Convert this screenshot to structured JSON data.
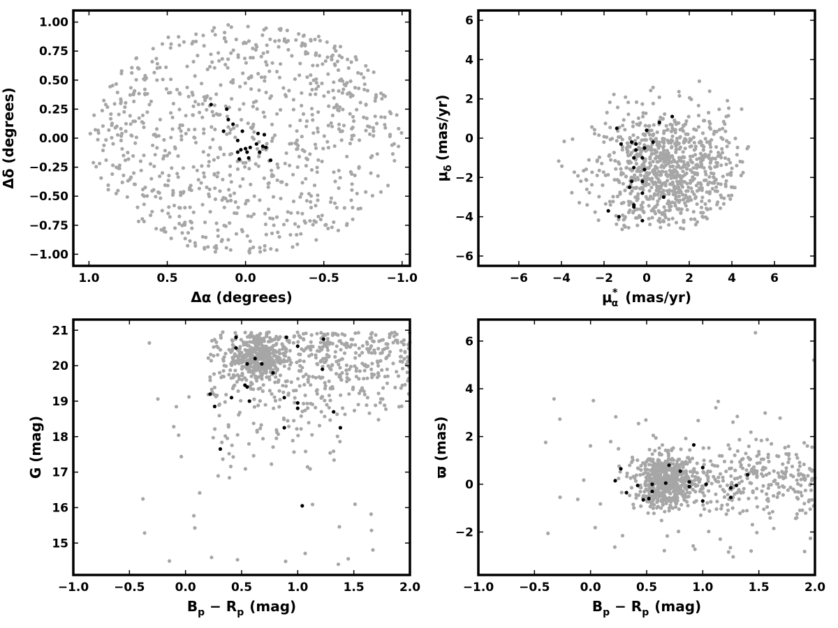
{
  "colors": {
    "field_stars": "#a6a6a6",
    "members": "#000000",
    "frame": "#000000"
  },
  "chart_data": [
    {
      "id": "sky",
      "type": "scatter",
      "xlabel": "Δα (degrees)",
      "ylabel": "Δδ (degrees)",
      "xlim": [
        1.1,
        -1.05
      ],
      "ylim": [
        -1.1,
        1.1
      ],
      "x_inverted": true,
      "xticks": [
        1.0,
        0.5,
        0.0,
        -0.5,
        -1.0
      ],
      "xtick_labels": [
        "1.0",
        "0.5",
        "0.0",
        "−0.5",
        "−1.0"
      ],
      "yticks": [
        -1.0,
        -0.75,
        -0.5,
        -0.25,
        0.0,
        0.25,
        0.5,
        0.75,
        1.0
      ],
      "ytick_labels": [
        "−1.00",
        "−0.75",
        "−0.50",
        "−0.25",
        "0.00",
        "0.25",
        "0.50",
        "0.75",
        "1.00"
      ],
      "grid": false,
      "series": [
        {
          "role": "field",
          "distribution": "uniform disk",
          "center": [
            0,
            0
          ],
          "radius": 1.0,
          "count": 850
        },
        {
          "role": "members",
          "points": [
            [
              0.22,
              0.29
            ],
            [
              0.14,
              0.06
            ],
            [
              0.12,
              0.25
            ],
            [
              0.11,
              0.16
            ],
            [
              0.08,
              0.12
            ],
            [
              0.05,
              -0.02
            ],
            [
              0.05,
              -0.12
            ],
            [
              0.04,
              -0.18
            ],
            [
              0.03,
              -0.1
            ],
            [
              0.02,
              0.06
            ],
            [
              0.0,
              -0.09
            ],
            [
              -0.01,
              -0.12
            ],
            [
              -0.02,
              -0.17
            ],
            [
              -0.03,
              -0.08
            ],
            [
              -0.07,
              -0.05
            ],
            [
              -0.08,
              0.04
            ],
            [
              -0.09,
              -0.12
            ],
            [
              -0.11,
              -0.07
            ],
            [
              -0.12,
              0.03
            ],
            [
              -0.13,
              -0.08
            ],
            [
              -0.16,
              -0.19
            ]
          ]
        }
      ]
    },
    {
      "id": "proper-motion",
      "type": "scatter",
      "xlabel_main": "μ",
      "xlabel_sub": "α",
      "xlabel_sup": "*",
      "xlabel_units": "(mas/yr)",
      "ylabel_main": "μ",
      "ylabel_sub": "δ",
      "ylabel_units": "(mas/yr)",
      "xlim": [
        -7.9,
        7.9
      ],
      "ylim": [
        -6.5,
        6.5
      ],
      "xticks": [
        -6,
        -4,
        -2,
        0,
        2,
        4,
        6
      ],
      "xtick_labels": [
        "−6",
        "−4",
        "−2",
        "0",
        "2",
        "4",
        "6"
      ],
      "yticks": [
        -6,
        -4,
        -2,
        0,
        2,
        4,
        6
      ],
      "ytick_labels": [
        "−6",
        "−4",
        "−2",
        "0",
        "2",
        "4",
        "6"
      ],
      "grid": false,
      "series": [
        {
          "role": "field",
          "distribution": "cloud",
          "center": [
            1.0,
            -1.8
          ],
          "spread": [
            1.9,
            1.9
          ],
          "x_range": [
            -4.5,
            4.8
          ],
          "y_range": [
            -4.9,
            4.3
          ],
          "count": 900
        },
        {
          "role": "members",
          "points": [
            [
              -1.4,
              0.5
            ],
            [
              -1.2,
              -0.3
            ],
            [
              -1.8,
              -3.7
            ],
            [
              -1.3,
              -4.0
            ],
            [
              -0.7,
              -0.2
            ],
            [
              -0.5,
              -0.3
            ],
            [
              -0.5,
              -0.6
            ],
            [
              -0.6,
              -1.0
            ],
            [
              -0.6,
              -1.5
            ],
            [
              -0.7,
              -2.2
            ],
            [
              -0.8,
              -2.5
            ],
            [
              -0.6,
              -3.4
            ],
            [
              -0.6,
              -3.5
            ],
            [
              -0.2,
              -4.2
            ],
            [
              0.0,
              0.4
            ],
            [
              -0.1,
              -0.5
            ],
            [
              -0.2,
              -1.0
            ],
            [
              -0.1,
              -1.6
            ],
            [
              -0.2,
              -2.2
            ],
            [
              0.3,
              -0.2
            ],
            [
              0.6,
              0.8
            ],
            [
              1.2,
              1.1
            ],
            [
              0.8,
              -3.0
            ],
            [
              -0.2,
              -2.8
            ]
          ]
        }
      ]
    },
    {
      "id": "cmd",
      "type": "scatter",
      "xlabel_main": "B",
      "xlabel_sub1": "p",
      "xlabel_mid": " − R",
      "xlabel_sub2": "p",
      "xlabel_units": "(mag)",
      "ylabel": "G (mag)",
      "xlim": [
        -1.0,
        2.0
      ],
      "ylim": [
        14.1,
        21.3
      ],
      "y_inverted": false,
      "xticks": [
        -1.0,
        -0.5,
        0.0,
        0.5,
        1.0,
        1.5,
        2.0
      ],
      "xtick_labels": [
        "−1.0",
        "−0.5",
        "0.0",
        "0.5",
        "1.0",
        "1.5",
        "2.0"
      ],
      "yticks": [
        15,
        16,
        17,
        18,
        19,
        20,
        21
      ],
      "ytick_labels": [
        "15",
        "16",
        "17",
        "18",
        "19",
        "20",
        "21"
      ],
      "grid": false,
      "series": [
        {
          "role": "field",
          "distribution": "clump + tail",
          "clump_center": [
            0.65,
            20.2
          ],
          "tail_range_x": [
            0.3,
            2.0
          ],
          "count": 850
        },
        {
          "role": "members",
          "points": [
            [
              0.45,
              20.8
            ],
            [
              0.45,
              20.5
            ],
            [
              0.55,
              20.05
            ],
            [
              0.62,
              20.2
            ],
            [
              0.68,
              20.05
            ],
            [
              0.78,
              19.8
            ],
            [
              0.9,
              20.8
            ],
            [
              1.0,
              20.55
            ],
            [
              1.23,
              20.75
            ],
            [
              1.22,
              19.9
            ],
            [
              0.53,
              19.45
            ],
            [
              0.55,
              19.4
            ],
            [
              0.57,
              19.0
            ],
            [
              0.41,
              19.1
            ],
            [
              0.22,
              19.2
            ],
            [
              0.26,
              18.85
            ],
            [
              0.88,
              19.1
            ],
            [
              0.88,
              18.25
            ],
            [
              1.0,
              18.95
            ],
            [
              1.0,
              18.8
            ],
            [
              1.32,
              18.7
            ],
            [
              1.38,
              18.25
            ],
            [
              0.31,
              17.65
            ],
            [
              1.04,
              16.05
            ]
          ]
        }
      ]
    },
    {
      "id": "parallax",
      "type": "scatter",
      "xlabel_main": "B",
      "xlabel_sub1": "p",
      "xlabel_mid": " − R",
      "xlabel_sub2": "p",
      "xlabel_units": "(mag)",
      "ylabel": "ϖ (mas)",
      "xlim": [
        -1.0,
        2.0
      ],
      "ylim": [
        -3.8,
        6.9
      ],
      "xticks": [
        -1.0,
        -0.5,
        0.0,
        0.5,
        1.0,
        1.5,
        2.0
      ],
      "xtick_labels": [
        "−1.0",
        "−0.5",
        "0.0",
        "0.5",
        "1.0",
        "1.5",
        "2.0"
      ],
      "yticks": [
        -2,
        0,
        2,
        4,
        6
      ],
      "ytick_labels": [
        "−2",
        "0",
        "2",
        "4",
        "6"
      ],
      "grid": false,
      "series": [
        {
          "role": "field",
          "distribution": "clump + tail",
          "clump_center": [
            0.68,
            0.1
          ],
          "count": 900
        },
        {
          "role": "members",
          "points": [
            [
              0.22,
              0.15
            ],
            [
              0.27,
              0.65
            ],
            [
              0.32,
              -0.35
            ],
            [
              0.42,
              -0.05
            ],
            [
              0.47,
              -0.65
            ],
            [
              0.52,
              -0.6
            ],
            [
              0.55,
              0.0
            ],
            [
              0.55,
              -0.3
            ],
            [
              0.67,
              0.05
            ],
            [
              0.7,
              0.8
            ],
            [
              0.8,
              0.55
            ],
            [
              0.88,
              0.1
            ],
            [
              0.88,
              -0.1
            ],
            [
              0.92,
              1.65
            ],
            [
              1.0,
              0.7
            ],
            [
              1.0,
              -0.7
            ],
            [
              1.03,
              0.0
            ],
            [
              1.25,
              -0.55
            ],
            [
              1.25,
              -0.15
            ],
            [
              1.3,
              -0.05
            ],
            [
              1.4,
              0.4
            ]
          ]
        }
      ]
    }
  ]
}
